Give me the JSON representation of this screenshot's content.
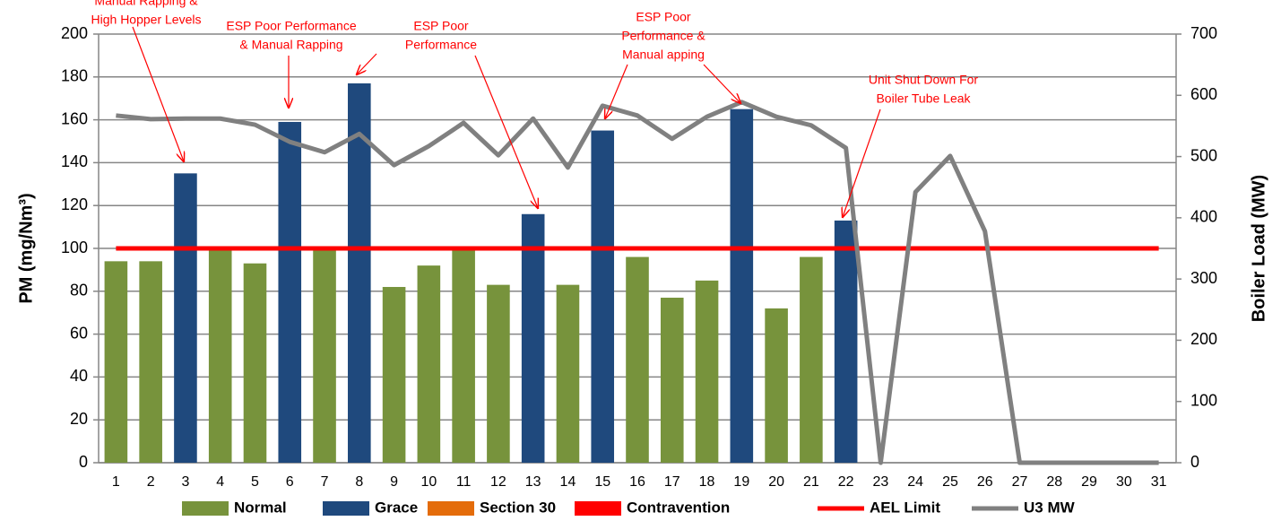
{
  "chart_data": {
    "type": "bar_line",
    "ylabel": "PM (mg/Nm³)",
    "y2label": "Boiler Load (MW)",
    "categories": [
      "1",
      "2",
      "3",
      "4",
      "5",
      "6",
      "7",
      "8",
      "9",
      "10",
      "11",
      "12",
      "13",
      "14",
      "15",
      "16",
      "17",
      "18",
      "19",
      "20",
      "21",
      "22",
      "23",
      "24",
      "25",
      "26",
      "27",
      "28",
      "29",
      "30",
      "31"
    ],
    "ylim": [
      0,
      200
    ],
    "yticks": [
      0,
      20,
      40,
      60,
      80,
      100,
      120,
      140,
      160,
      180,
      200
    ],
    "y2lim": [
      0,
      700
    ],
    "y2ticks": [
      0,
      100,
      200,
      300,
      400,
      500,
      600,
      700
    ],
    "grid": true,
    "series": [
      {
        "name": "Normal",
        "kind": "bar",
        "color": "#77933c",
        "values": [
          94,
          94,
          null,
          99,
          93,
          null,
          100,
          null,
          82,
          92,
          99,
          83,
          null,
          83,
          null,
          96,
          77,
          85,
          null,
          72,
          96,
          null,
          null,
          null,
          null,
          null,
          null,
          null,
          null,
          null,
          null
        ]
      },
      {
        "name": "Grace",
        "kind": "bar",
        "color": "#1f497d",
        "values": [
          null,
          null,
          135,
          null,
          null,
          159,
          null,
          177,
          null,
          null,
          null,
          null,
          116,
          null,
          155,
          null,
          null,
          null,
          165,
          null,
          null,
          113,
          null,
          null,
          null,
          null,
          null,
          null,
          null,
          null,
          null
        ]
      },
      {
        "name": "Section 30",
        "kind": "bar",
        "color": "#e46c0a",
        "values": [
          null,
          null,
          null,
          null,
          null,
          null,
          null,
          null,
          null,
          null,
          null,
          null,
          null,
          null,
          null,
          null,
          null,
          null,
          null,
          null,
          null,
          null,
          null,
          null,
          null,
          null,
          null,
          null,
          null,
          null,
          null
        ]
      },
      {
        "name": "Contravention",
        "kind": "bar",
        "color": "#ff0000",
        "values": [
          null,
          null,
          null,
          null,
          null,
          null,
          null,
          null,
          null,
          null,
          null,
          null,
          null,
          null,
          null,
          null,
          null,
          null,
          null,
          null,
          null,
          null,
          null,
          null,
          null,
          null,
          null,
          null,
          null,
          null,
          null
        ]
      },
      {
        "name": "AEL Limit",
        "kind": "line",
        "color": "#ff0000",
        "values": [
          100,
          100,
          100,
          100,
          100,
          100,
          100,
          100,
          100,
          100,
          100,
          100,
          100,
          100,
          100,
          100,
          100,
          100,
          100,
          100,
          100,
          100,
          100,
          100,
          100,
          100,
          100,
          100,
          100,
          100,
          100
        ]
      },
      {
        "name": "U3 MW",
        "kind": "line",
        "axis": "y2",
        "color": "#808080",
        "values": [
          567,
          561,
          562,
          562,
          552,
          524,
          507,
          537,
          486,
          517,
          555,
          502,
          562,
          482,
          583,
          567,
          529,
          565,
          589,
          565,
          551,
          514,
          0,
          442,
          501,
          378,
          0,
          0,
          0,
          0,
          0
        ]
      }
    ],
    "annotations": [
      {
        "lines": [
          "Manual Rapping &",
          "High Hopper Levels"
        ]
      },
      {
        "lines": [
          "ESP Poor Performance",
          "& Manual Rapping"
        ]
      },
      {
        "lines": [
          "ESP Poor",
          "Performance"
        ]
      },
      {
        "lines": [
          "ESP Poor",
          "Performance &",
          "Manual apping"
        ]
      },
      {
        "lines": [
          "Unit Shut Down For",
          "Boiler Tube Leak"
        ]
      }
    ]
  }
}
